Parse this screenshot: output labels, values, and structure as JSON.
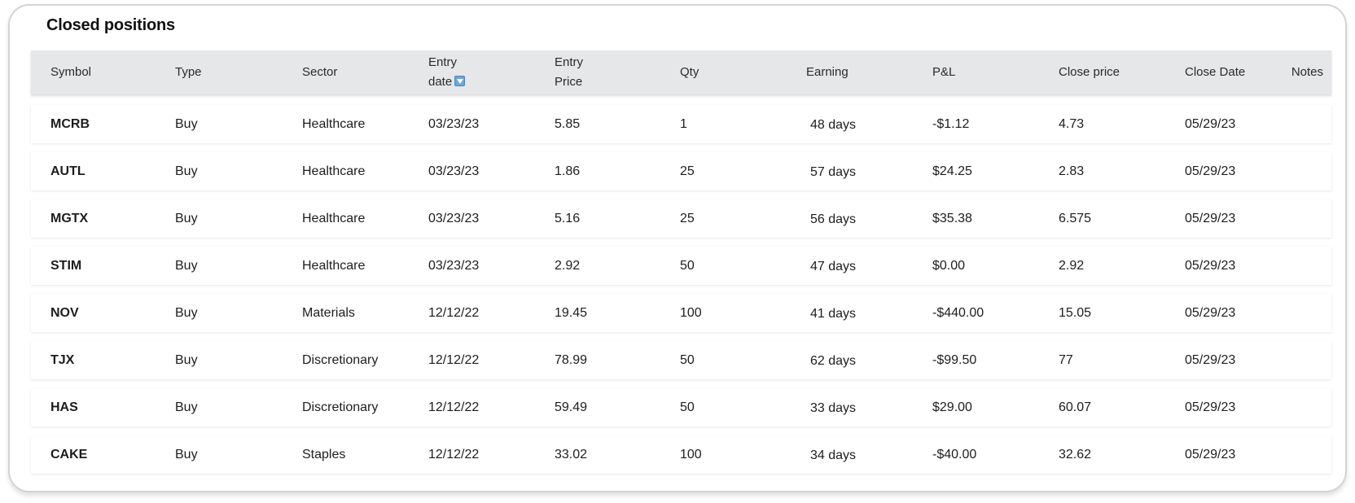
{
  "title": "Closed positions",
  "headers": {
    "symbol": "Symbol",
    "type": "Type",
    "sector": "Sector",
    "entry_date_1": "Entry",
    "entry_date_2": "date",
    "entry_price_1": "Entry",
    "entry_price_2": "Price",
    "qty": "Qty",
    "earning": "Earning",
    "pl": "P&L",
    "close_price": "Close price",
    "close_date": "Close Date",
    "notes": "Notes"
  },
  "sort_icon": "sort-descending-icon",
  "rows": [
    {
      "symbol": "MCRB",
      "type": "Buy",
      "sector": "Healthcare",
      "entry_date": "03/23/23",
      "entry_price": "5.85",
      "qty": "1",
      "earning": "48 days",
      "pl": "-$1.12",
      "close_price": "4.73",
      "close_date": "05/29/23"
    },
    {
      "symbol": "AUTL",
      "type": "Buy",
      "sector": "Healthcare",
      "entry_date": "03/23/23",
      "entry_price": "1.86",
      "qty": "25",
      "earning": "57 days",
      "pl": "$24.25",
      "close_price": "2.83",
      "close_date": "05/29/23"
    },
    {
      "symbol": "MGTX",
      "type": "Buy",
      "sector": "Healthcare",
      "entry_date": "03/23/23",
      "entry_price": "5.16",
      "qty": "25",
      "earning": "56 days",
      "pl": "$35.38",
      "close_price": "6.575",
      "close_date": "05/29/23"
    },
    {
      "symbol": "STIM",
      "type": "Buy",
      "sector": "Healthcare",
      "entry_date": "03/23/23",
      "entry_price": "2.92",
      "qty": "50",
      "earning": "47 days",
      "pl": "$0.00",
      "close_price": "2.92",
      "close_date": "05/29/23"
    },
    {
      "symbol": "NOV",
      "type": "Buy",
      "sector": "Materials",
      "entry_date": "12/12/22",
      "entry_price": "19.45",
      "qty": "100",
      "earning": "41 days",
      "pl": "-$440.00",
      "close_price": "15.05",
      "close_date": "05/29/23"
    },
    {
      "symbol": "TJX",
      "type": "Buy",
      "sector": "Discretionary",
      "entry_date": "12/12/22",
      "entry_price": "78.99",
      "qty": "50",
      "earning": "62 days",
      "pl": "-$99.50",
      "close_price": "77",
      "close_date": "05/29/23"
    },
    {
      "symbol": "HAS",
      "type": "Buy",
      "sector": "Discretionary",
      "entry_date": "12/12/22",
      "entry_price": "59.49",
      "qty": "50",
      "earning": "33 days",
      "pl": "$29.00",
      "close_price": "60.07",
      "close_date": "05/29/23"
    },
    {
      "symbol": "CAKE",
      "type": "Buy",
      "sector": "Staples",
      "entry_date": "12/12/22",
      "entry_price": "33.02",
      "qty": "100",
      "earning": "34 days",
      "pl": "-$40.00",
      "close_price": "32.62",
      "close_date": "05/29/23"
    }
  ]
}
